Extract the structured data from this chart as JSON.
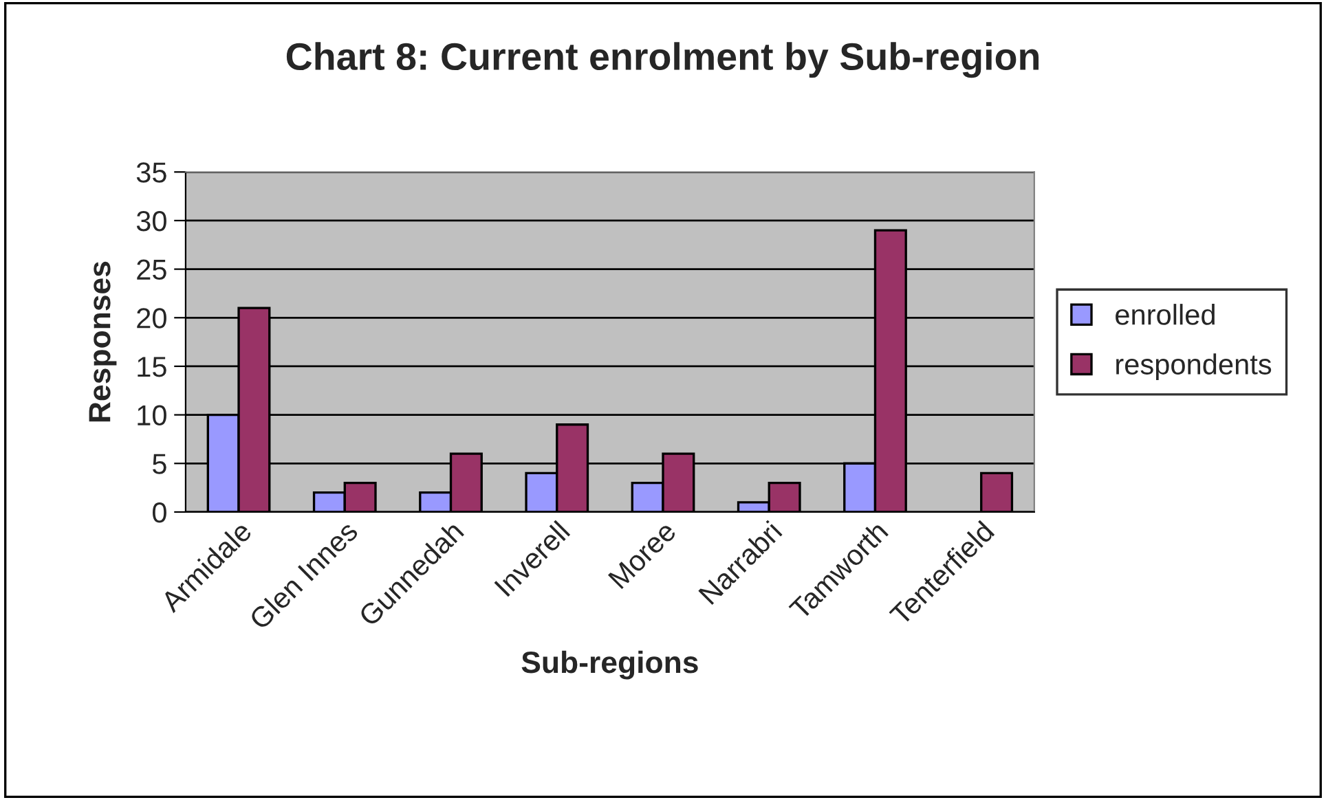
{
  "chart_data": {
    "type": "bar",
    "title": "Chart 8: Current enrolment by Sub-region",
    "xlabel": "Sub-regions",
    "ylabel": "Responses",
    "categories": [
      "Armidale",
      "Glen Innes",
      "Gunnedah",
      "Inverell",
      "Moree",
      "Narrabri",
      "Tamworth",
      "Tenterfield"
    ],
    "series": [
      {
        "name": "enrolled",
        "color": "#9999ff",
        "values": [
          10,
          2,
          2,
          4,
          3,
          1,
          5,
          null
        ]
      },
      {
        "name": "respondents",
        "color": "#993366",
        "values": [
          21,
          3,
          6,
          9,
          6,
          3,
          29,
          4
        ]
      }
    ],
    "ylim": [
      0,
      35
    ],
    "yticks": [
      0,
      5,
      10,
      15,
      20,
      25,
      30,
      35
    ],
    "grid": "y",
    "legend": "right"
  }
}
